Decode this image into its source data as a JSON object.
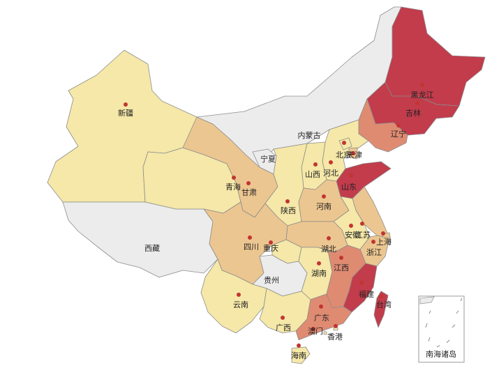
{
  "colors": {
    "none": "#ececec",
    "level1": "#f5e8a8",
    "level2": "#ecc690",
    "level3": "#df8b72",
    "level4": "#c23c4c",
    "dot": "#c23531",
    "border": "#8c8c8c"
  },
  "provinces": [
    {
      "key": "xinjiang",
      "name": "新疆",
      "level": 1,
      "dot": true
    },
    {
      "key": "xizang",
      "name": "西藏",
      "level": 0,
      "dot": false
    },
    {
      "key": "qinghai",
      "name": "青海",
      "level": 1,
      "dot": true
    },
    {
      "key": "gansu",
      "name": "甘肃",
      "level": 2,
      "dot": true
    },
    {
      "key": "neimenggu",
      "name": "内蒙古",
      "level": 0,
      "dot": false
    },
    {
      "key": "ningxia",
      "name": "宁夏",
      "level": 0,
      "dot": false
    },
    {
      "key": "heilongjiang",
      "name": "黑龙江",
      "level": 4,
      "dot": true
    },
    {
      "key": "jilin",
      "name": "吉林",
      "level": 4,
      "dot": true
    },
    {
      "key": "liaoning",
      "name": "辽宁",
      "level": 3,
      "dot": true
    },
    {
      "key": "beijing",
      "name": "北京",
      "level": 1,
      "dot": true
    },
    {
      "key": "tianjin",
      "name": "天津",
      "level": 2,
      "dot": true
    },
    {
      "key": "hebei",
      "name": "河北",
      "level": 1,
      "dot": true
    },
    {
      "key": "shanxi",
      "name": "山西",
      "level": 1,
      "dot": true
    },
    {
      "key": "shandong",
      "name": "山东",
      "level": 4,
      "dot": true
    },
    {
      "key": "shaanxi",
      "name": "陕西",
      "level": 1,
      "dot": true
    },
    {
      "key": "henan",
      "name": "河南",
      "level": 2,
      "dot": true
    },
    {
      "key": "jiangsu",
      "name": "江苏",
      "level": 2,
      "dot": true
    },
    {
      "key": "anhui",
      "name": "安徽",
      "level": 1,
      "dot": true
    },
    {
      "key": "shanghai",
      "name": "上海",
      "level": 2,
      "dot": true
    },
    {
      "key": "zhejiang",
      "name": "浙江",
      "level": 2,
      "dot": true
    },
    {
      "key": "hubei",
      "name": "湖北",
      "level": 2,
      "dot": true
    },
    {
      "key": "sichuan",
      "name": "四川",
      "level": 2,
      "dot": true
    },
    {
      "key": "chongqing",
      "name": "重庆",
      "level": 1,
      "dot": true
    },
    {
      "key": "guizhou",
      "name": "贵州",
      "level": 0,
      "dot": false
    },
    {
      "key": "hunan",
      "name": "湖南",
      "level": 1,
      "dot": true
    },
    {
      "key": "jiangxi",
      "name": "江西",
      "level": 3,
      "dot": true
    },
    {
      "key": "fujian",
      "name": "福建",
      "level": 4,
      "dot": true
    },
    {
      "key": "taiwan",
      "name": "台湾",
      "level": 4,
      "dot": true
    },
    {
      "key": "yunnan",
      "name": "云南",
      "level": 1,
      "dot": true
    },
    {
      "key": "guangxi",
      "name": "广西",
      "level": 1,
      "dot": true
    },
    {
      "key": "guangdong",
      "name": "广东",
      "level": 3,
      "dot": true
    },
    {
      "key": "aomen",
      "name": "澳门",
      "level": 1,
      "dot": true
    },
    {
      "key": "xianggang",
      "name": "香港",
      "level": 1,
      "dot": true
    },
    {
      "key": "hainan",
      "name": "海南",
      "level": 1,
      "dot": true
    }
  ],
  "inset": {
    "label": "南海诸岛"
  }
}
